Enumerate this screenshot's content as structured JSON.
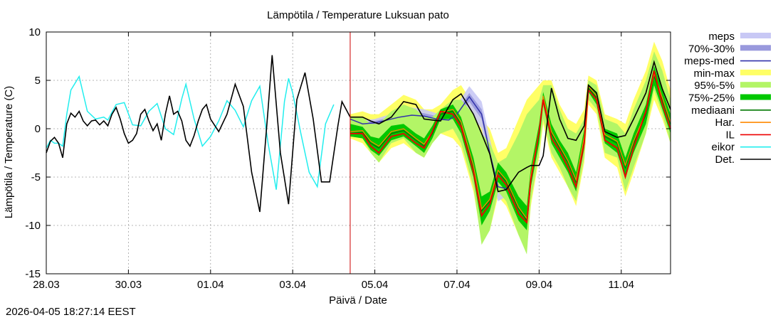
{
  "chart_data": {
    "type": "line",
    "title": "Lämpötila / Temperature   Luksuan pato",
    "xlabel": "Päivä / Date",
    "ylabel": "Lämpötila / Temperature (C)",
    "ylim": [
      -15,
      10
    ],
    "xlim": [
      0,
      15.2
    ],
    "grid": true,
    "forecast_start_day": 7.4,
    "x_ticks": [
      {
        "day": 0,
        "label": "28.03"
      },
      {
        "day": 2,
        "label": "30.03"
      },
      {
        "day": 4,
        "label": "01.04"
      },
      {
        "day": 6,
        "label": "03.04"
      },
      {
        "day": 8,
        "label": "05.04"
      },
      {
        "day": 10,
        "label": "07.04"
      },
      {
        "day": 12,
        "label": "09.04"
      },
      {
        "day": 14,
        "label": "11.04"
      }
    ],
    "y_ticks": [
      10,
      5,
      0,
      -5,
      -10,
      -15
    ],
    "legend": [
      {
        "key": "meps",
        "label": "meps",
        "style": "band",
        "color": "#c8c8f5"
      },
      {
        "key": "meps7030",
        "label": "70%-30%",
        "style": "band",
        "color": "#9999dd"
      },
      {
        "key": "mepsmed",
        "label": "meps-med",
        "style": "line",
        "color": "#3333aa"
      },
      {
        "key": "minmax",
        "label": "min-max",
        "style": "band",
        "color": "#ffff66"
      },
      {
        "key": "p95",
        "label": "95%-5%",
        "style": "band",
        "color": "#b3f566"
      },
      {
        "key": "p75",
        "label": "75%-25%",
        "style": "band",
        "color": "#00c800"
      },
      {
        "key": "median",
        "label": "mediaani",
        "style": "line",
        "color": "#007700"
      },
      {
        "key": "har",
        "label": "Har.",
        "style": "line",
        "color": "#ff8800"
      },
      {
        "key": "il",
        "label": "IL",
        "style": "line",
        "color": "#ee0000"
      },
      {
        "key": "eikor",
        "label": "eikor",
        "style": "line",
        "color": "#22eeee"
      },
      {
        "key": "det",
        "label": "Det.",
        "style": "line",
        "color": "#000000"
      }
    ],
    "series": {
      "eikor": {
        "x": [
          0,
          0.1,
          0.2,
          0.3,
          0.4,
          0.5,
          0.6,
          0.8,
          1.0,
          1.2,
          1.4,
          1.5,
          1.7,
          1.9,
          2.1,
          2.3,
          2.5,
          2.7,
          2.9,
          3.1,
          3.3,
          3.4,
          3.6,
          3.8,
          4.0,
          4.2,
          4.4,
          4.6,
          4.8,
          5.0,
          5.2,
          5.4,
          5.6,
          5.8,
          5.9,
          6.0,
          6.2,
          6.4,
          6.6,
          6.8,
          7.0
        ],
        "y": [
          -2.0,
          -1.2,
          -1.5,
          -1.5,
          -1.8,
          1.5,
          4.0,
          5.4,
          1.8,
          1.0,
          1.2,
          0.9,
          2.5,
          2.7,
          0.4,
          0.3,
          1.8,
          2.6,
          0.0,
          -0.6,
          3.1,
          4.6,
          1.0,
          -1.8,
          -0.8,
          0.8,
          2.9,
          1.9,
          0.2,
          2.9,
          4.4,
          -1.5,
          -6.3,
          2.8,
          5.2,
          3.7,
          -0.5,
          -4.5,
          -6.0,
          0.5,
          2.5
        ]
      },
      "det": {
        "x": [
          0,
          0.1,
          0.2,
          0.3,
          0.4,
          0.5,
          0.6,
          0.7,
          0.8,
          0.9,
          1.0,
          1.1,
          1.2,
          1.3,
          1.4,
          1.5,
          1.6,
          1.7,
          1.8,
          1.9,
          2.0,
          2.1,
          2.2,
          2.3,
          2.4,
          2.5,
          2.6,
          2.7,
          2.8,
          2.9,
          3.0,
          3.1,
          3.2,
          3.3,
          3.4,
          3.5,
          3.6,
          3.7,
          3.8,
          3.9,
          4.0,
          4.2,
          4.4,
          4.6,
          4.8,
          5.0,
          5.2,
          5.4,
          5.5,
          5.7,
          5.9,
          6.1,
          6.3,
          6.5,
          6.7,
          6.9,
          7.1,
          7.2,
          7.3,
          7.4
        ],
        "y": [
          -2.5,
          -1.3,
          -0.9,
          -1.5,
          -3.0,
          0.5,
          1.6,
          1.2,
          1.8,
          0.8,
          0.3,
          0.8,
          0.9,
          0.4,
          0.8,
          0.3,
          1.5,
          2.2,
          1.0,
          -0.5,
          -1.5,
          -1.2,
          -0.5,
          1.5,
          2.0,
          0.8,
          -0.2,
          0.5,
          -1.2,
          1.5,
          3.4,
          1.5,
          1.8,
          0.8,
          -1.2,
          -1.8,
          -0.7,
          0.8,
          2.0,
          2.5,
          1.0,
          -0.3,
          1.5,
          4.6,
          2.3,
          -4.5,
          -8.6,
          2.0,
          7.6,
          -2.5,
          -7.8,
          3.0,
          5.8,
          1.0,
          -5.5,
          -5.5,
          0.3,
          2.8,
          2.0,
          1.2
        ]
      },
      "detForecast": {
        "x": [
          7.4,
          7.7,
          7.9,
          8.1,
          8.4,
          8.7,
          9.0,
          9.2,
          9.4,
          9.6,
          9.9,
          10.1,
          10.4,
          10.6,
          10.8,
          11.0,
          11.2,
          11.5,
          11.7,
          11.8,
          12.0,
          12.1,
          12.3,
          12.5,
          12.7,
          12.9,
          13.1,
          13.2,
          13.4,
          13.6,
          13.9,
          14.1,
          14.3,
          14.6,
          14.8,
          15.0,
          15.2
        ],
        "y": [
          1.2,
          1.2,
          0.8,
          0.5,
          1.2,
          2.8,
          2.5,
          1.0,
          0.9,
          0.8,
          3.0,
          3.6,
          1.5,
          -0.5,
          -2.6,
          -6.5,
          -6.3,
          -4.5,
          -4.0,
          -3.8,
          -3.8,
          -2.8,
          4.2,
          1.0,
          -1.0,
          -1.2,
          0.3,
          4.5,
          3.7,
          -0.3,
          -0.9,
          -0.7,
          1.0,
          3.7,
          6.9,
          4.1,
          2.0
        ]
      },
      "median": {
        "x": [
          7.4,
          7.7,
          7.9,
          8.1,
          8.4,
          8.7,
          9.0,
          9.2,
          9.4,
          9.6,
          9.9,
          10.1,
          10.4,
          10.6,
          10.8,
          11.0,
          11.2,
          11.5,
          11.7,
          11.8,
          12.0,
          12.1,
          12.3,
          12.5,
          12.7,
          12.9,
          13.1,
          13.2,
          13.4,
          13.6,
          13.9,
          14.1,
          14.3,
          14.6,
          14.8,
          15.0,
          15.2
        ],
        "y": [
          -0.5,
          -0.4,
          -1.5,
          -2.0,
          -0.5,
          -0.2,
          -1.2,
          -1.8,
          -0.5,
          1.5,
          1.8,
          0.5,
          -4.0,
          -8.5,
          -7.5,
          -4.5,
          -5.5,
          -8.3,
          -9.5,
          -5.0,
          -0.5,
          3.2,
          -0.5,
          -2.0,
          -3.5,
          -5.5,
          -1.0,
          4.2,
          3.2,
          -0.8,
          -1.5,
          -4.0,
          -1.5,
          1.5,
          5.5,
          3.0,
          0.5
        ]
      },
      "il": {
        "x": [
          7.4,
          7.7,
          7.9,
          8.1,
          8.4,
          8.7,
          9.0,
          9.2,
          9.4,
          9.6,
          9.9,
          10.1,
          10.4,
          10.6,
          10.8,
          11.0,
          11.2,
          11.5,
          11.7,
          11.8,
          12.0,
          12.1,
          12.3,
          12.5,
          12.7,
          12.9,
          13.1,
          13.2,
          13.4,
          13.6,
          13.9,
          14.1,
          14.3,
          14.6,
          14.8,
          15.0,
          15.2
        ],
        "y": [
          -0.5,
          -0.5,
          -1.8,
          -2.5,
          -0.8,
          -0.5,
          -1.5,
          -2.0,
          -0.3,
          1.8,
          1.5,
          0.2,
          -4.5,
          -9.0,
          -7.8,
          -4.8,
          -5.8,
          -8.8,
          -9.7,
          -5.3,
          -0.3,
          3.0,
          -1.0,
          -2.3,
          -4.0,
          -6.0,
          -1.5,
          4.0,
          3.0,
          -1.2,
          -2.0,
          -5.0,
          -2.0,
          1.8,
          6.0,
          2.5,
          0.0
        ]
      },
      "mepsMed": {
        "x": [
          7.4,
          7.7,
          8.0,
          8.3,
          8.6,
          8.9,
          9.2,
          9.5,
          9.8,
          10.0,
          10.3,
          10.6,
          10.8,
          11.0,
          11.2
        ],
        "y": [
          1.0,
          0.5,
          0.6,
          0.9,
          1.2,
          1.4,
          1.3,
          1.0,
          0.9,
          1.5,
          3.3,
          1.5,
          -2.5,
          -6.0,
          -6.2
        ]
      },
      "bands": {
        "x": [
          7.4,
          7.7,
          7.9,
          8.1,
          8.4,
          8.7,
          9.0,
          9.2,
          9.4,
          9.6,
          9.9,
          10.1,
          10.4,
          10.6,
          10.8,
          11.0,
          11.2,
          11.5,
          11.7,
          11.8,
          12.0,
          12.1,
          12.3,
          12.5,
          12.7,
          12.9,
          13.1,
          13.2,
          13.4,
          13.6,
          13.9,
          14.1,
          14.3,
          14.6,
          14.8,
          15.0,
          15.2
        ],
        "minmax_hi": [
          1.5,
          1.8,
          1.5,
          1.5,
          2.5,
          3.5,
          3.0,
          2.0,
          2.0,
          2.5,
          4.0,
          4.5,
          2.5,
          1.0,
          0.0,
          -2.5,
          -2.0,
          1.0,
          3.0,
          3.5,
          4.5,
          5.0,
          5.0,
          2.5,
          1.0,
          0.5,
          2.0,
          5.5,
          5.0,
          1.5,
          1.0,
          0.5,
          3.0,
          6.0,
          9.0,
          7.0,
          4.0
        ],
        "minmax_lo": [
          -1.0,
          -1.5,
          -2.5,
          -3.5,
          -2.0,
          -1.5,
          -2.5,
          -3.0,
          -1.5,
          -0.5,
          -1.0,
          -2.0,
          -6.5,
          -11.5,
          -10.5,
          -7.0,
          -8.0,
          -11.0,
          -12.5,
          -8.0,
          -3.0,
          0.5,
          -3.0,
          -4.5,
          -6.0,
          -8.0,
          -3.5,
          2.5,
          1.5,
          -3.0,
          -4.0,
          -7.0,
          -4.5,
          -0.5,
          3.0,
          1.0,
          -1.5
        ],
        "p95_hi": [
          1.2,
          1.2,
          0.5,
          0.5,
          1.8,
          2.5,
          2.0,
          1.2,
          1.2,
          2.0,
          3.0,
          3.0,
          1.5,
          -0.5,
          -1.5,
          -3.5,
          -3.0,
          -0.5,
          1.5,
          2.0,
          3.0,
          4.5,
          4.5,
          2.0,
          0.0,
          -0.5,
          1.0,
          5.0,
          4.5,
          1.0,
          0.5,
          -0.5,
          2.0,
          5.0,
          8.0,
          6.0,
          3.0
        ],
        "p95_lo": [
          -0.8,
          -1.0,
          -2.5,
          -3.5,
          -1.5,
          -1.0,
          -2.5,
          -3.0,
          -1.5,
          -0.5,
          0.0,
          -1.5,
          -6.0,
          -12.0,
          -10.5,
          -6.5,
          -7.5,
          -11.0,
          -13.0,
          -7.5,
          -2.5,
          1.0,
          -2.5,
          -4.0,
          -6.0,
          -7.5,
          -3.0,
          3.0,
          2.0,
          -2.5,
          -3.0,
          -6.5,
          -4.0,
          -0.5,
          4.0,
          1.5,
          -1.5
        ],
        "p75_hi": [
          0.5,
          0.2,
          -0.8,
          -1.0,
          0.3,
          0.5,
          -0.5,
          -1.0,
          0.3,
          2.0,
          2.5,
          1.2,
          -3.0,
          -7.0,
          -6.5,
          -3.5,
          -4.5,
          -7.0,
          -8.0,
          -4.0,
          0.5,
          3.8,
          0.5,
          -1.2,
          -2.5,
          -4.5,
          0.0,
          4.6,
          3.8,
          0.0,
          -0.5,
          -3.0,
          -0.5,
          2.5,
          6.5,
          4.0,
          1.5
        ],
        "p75_lo": [
          -0.8,
          -1.0,
          -2.2,
          -2.8,
          -1.2,
          -0.8,
          -1.8,
          -2.5,
          -1.0,
          1.0,
          1.0,
          -0.5,
          -5.0,
          -10.0,
          -8.5,
          -5.5,
          -6.5,
          -9.5,
          -10.5,
          -6.0,
          -1.5,
          2.5,
          -1.5,
          -3.0,
          -4.5,
          -6.5,
          -2.0,
          3.8,
          2.5,
          -1.5,
          -2.5,
          -5.0,
          -2.5,
          0.5,
          4.5,
          2.0,
          -0.5
        ]
      },
      "mepsBands": {
        "x": [
          7.4,
          7.7,
          8.0,
          8.3,
          8.6,
          8.9,
          9.2,
          9.5,
          9.8,
          10.0,
          10.3,
          10.6,
          10.8,
          11.0,
          11.2
        ],
        "meps_hi": [
          1.2,
          0.9,
          1.0,
          1.4,
          1.8,
          2.2,
          2.0,
          1.6,
          1.8,
          2.5,
          4.4,
          2.8,
          -1.0,
          -4.5,
          -5.0
        ],
        "meps_lo": [
          0.6,
          0.0,
          0.1,
          0.3,
          0.4,
          0.5,
          0.4,
          0.2,
          -0.2,
          0.5,
          1.8,
          0.0,
          -4.0,
          -7.5,
          -7.0
        ],
        "m70_hi": [
          1.1,
          0.7,
          0.8,
          1.1,
          1.5,
          1.8,
          1.6,
          1.3,
          1.2,
          1.9,
          3.7,
          2.0,
          -2.0,
          -5.5,
          -5.7
        ],
        "m70_lo": [
          0.8,
          0.3,
          0.4,
          0.7,
          0.9,
          1.0,
          1.0,
          0.7,
          0.5,
          1.1,
          2.8,
          1.0,
          -3.0,
          -6.5,
          -6.6
        ]
      }
    }
  },
  "footer": {
    "timestamp": "2026-04-05 18:27:14 EEST"
  }
}
